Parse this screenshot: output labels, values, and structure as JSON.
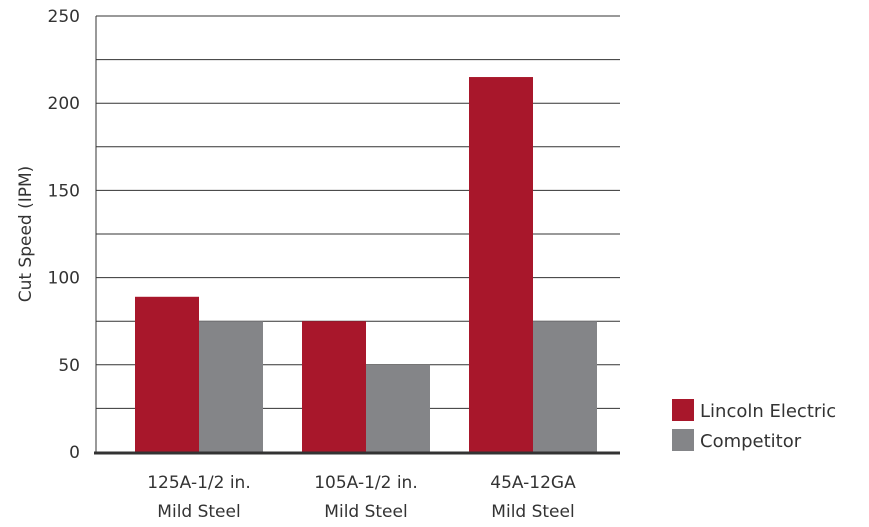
{
  "chart_data": {
    "type": "bar",
    "categories": [
      [
        "125A-1/2 in.",
        "Mild Steel"
      ],
      [
        "105A-1/2 in.",
        "Mild Steel"
      ],
      [
        "45A-12GA",
        "Mild Steel"
      ]
    ],
    "series": [
      {
        "name": "Lincoln Electric",
        "color": "#a8172b",
        "values": [
          89,
          75,
          215
        ]
      },
      {
        "name": "Competitor",
        "color": "#848588",
        "values": [
          75,
          50,
          75
        ]
      }
    ],
    "xlabel": "",
    "ylabel": "Cut Speed (IPM)",
    "ylim": [
      0,
      250
    ],
    "yticks": [
      0,
      50,
      100,
      150,
      200,
      250
    ],
    "grid": true,
    "grid_step": 25,
    "legend_position": "bottom-right"
  }
}
